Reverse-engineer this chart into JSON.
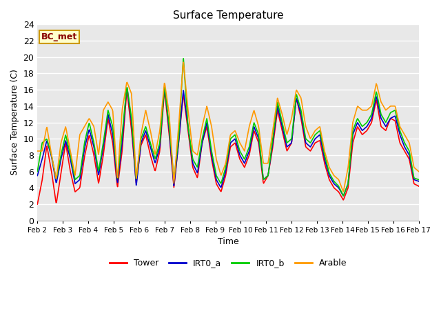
{
  "title": "Surface Temperature",
  "xlabel": "Time",
  "ylabel": "Surface Temperature (C)",
  "ylim": [
    0,
    24
  ],
  "xlim_days": [
    2,
    17
  ],
  "background_color": "#e8e8e8",
  "grid_color": "white",
  "annotation_text": "BC_met",
  "annotation_bg": "#ffffcc",
  "annotation_border": "#cc9900",
  "colors": {
    "Tower": "#ff0000",
    "IRT0_a": "#0000cc",
    "IRT0_b": "#00cc00",
    "Arable": "#ff9900"
  },
  "x_ticks": [
    2,
    3,
    4,
    5,
    6,
    7,
    8,
    9,
    10,
    11,
    12,
    13,
    14,
    15,
    16,
    17
  ],
  "x_tick_labels": [
    "Feb 2",
    "Feb 3",
    "Feb 4",
    "Feb 5",
    "Feb 6",
    "Feb 7",
    "Feb 8",
    "Feb 9",
    "Feb 10",
    "Feb 11",
    "Feb 12",
    "Feb 13",
    "Feb 14",
    "Feb 15",
    "Feb 16",
    "Feb 17"
  ],
  "tower_pts": [
    2.0,
    4.9,
    9.2,
    6.0,
    2.0,
    5.8,
    9.5,
    6.0,
    3.5,
    4.0,
    7.8,
    10.5,
    8.0,
    4.5,
    8.0,
    12.5,
    9.5,
    4.0,
    8.5,
    16.0,
    11.0,
    4.5,
    9.2,
    10.5,
    8.0,
    6.0,
    8.5,
    16.0,
    10.5,
    4.0,
    9.5,
    15.5,
    11.0,
    6.5,
    5.2,
    9.5,
    11.5,
    7.5,
    4.5,
    3.5,
    5.5,
    9.0,
    9.5,
    7.5,
    6.5,
    8.0,
    11.0,
    9.5,
    4.5,
    5.5,
    9.0,
    13.5,
    11.0,
    8.5,
    9.5,
    15.0,
    12.5,
    9.0,
    8.5,
    9.5,
    9.8,
    7.0,
    5.0,
    4.0,
    3.5,
    2.5,
    4.0,
    9.5,
    11.5,
    10.5,
    11.0,
    12.0,
    14.8,
    11.5,
    11.0,
    12.5,
    12.2,
    9.5,
    8.5,
    7.5,
    4.5,
    4.2
  ],
  "irt0_a_pts": [
    5.5,
    7.5,
    9.8,
    7.8,
    4.5,
    7.5,
    9.8,
    7.5,
    4.5,
    5.0,
    8.8,
    11.2,
    9.0,
    5.5,
    9.0,
    13.0,
    10.5,
    4.5,
    9.5,
    16.5,
    12.0,
    4.2,
    9.5,
    11.0,
    9.0,
    7.0,
    9.0,
    16.5,
    11.0,
    4.2,
    9.5,
    16.0,
    11.5,
    7.0,
    5.8,
    9.5,
    12.0,
    8.0,
    5.0,
    4.0,
    6.0,
    9.5,
    10.0,
    8.0,
    7.0,
    8.5,
    11.5,
    10.0,
    5.0,
    5.5,
    9.5,
    14.0,
    11.5,
    9.0,
    9.5,
    15.0,
    13.0,
    9.5,
    9.0,
    10.0,
    10.5,
    7.5,
    5.5,
    4.5,
    4.0,
    3.0,
    4.5,
    10.5,
    12.0,
    11.0,
    11.5,
    12.5,
    15.2,
    12.5,
    11.5,
    12.5,
    12.8,
    10.5,
    9.0,
    8.0,
    5.0,
    4.8
  ],
  "irt0_b_pts": [
    6.0,
    9.5,
    10.0,
    8.0,
    5.0,
    8.0,
    10.5,
    8.0,
    5.0,
    5.5,
    9.5,
    12.0,
    9.5,
    6.0,
    9.5,
    13.5,
    11.5,
    5.0,
    10.5,
    16.5,
    12.5,
    5.0,
    10.0,
    11.5,
    9.5,
    7.5,
    9.5,
    16.5,
    11.5,
    5.0,
    10.0,
    20.0,
    11.5,
    7.5,
    6.5,
    10.0,
    12.5,
    8.5,
    5.5,
    4.5,
    6.5,
    10.0,
    10.5,
    8.5,
    7.5,
    9.0,
    12.0,
    10.5,
    5.0,
    5.5,
    10.0,
    14.5,
    12.0,
    9.5,
    10.0,
    15.5,
    13.5,
    10.0,
    9.5,
    10.5,
    11.0,
    8.0,
    5.8,
    4.8,
    4.2,
    3.0,
    4.5,
    11.0,
    12.5,
    11.5,
    12.0,
    13.0,
    15.8,
    13.0,
    12.0,
    13.2,
    13.5,
    11.0,
    9.5,
    8.5,
    5.2,
    5.0
  ],
  "arable_pts": [
    8.5,
    8.5,
    11.5,
    8.0,
    5.0,
    9.5,
    11.5,
    8.5,
    5.5,
    10.5,
    11.5,
    12.5,
    11.5,
    8.0,
    13.5,
    14.5,
    13.5,
    5.0,
    13.5,
    17.0,
    15.5,
    5.0,
    10.5,
    13.5,
    11.0,
    8.0,
    11.0,
    17.0,
    13.0,
    4.5,
    11.5,
    19.5,
    13.5,
    8.5,
    8.0,
    11.5,
    14.0,
    11.5,
    7.5,
    5.5,
    7.0,
    10.5,
    11.0,
    9.5,
    8.5,
    11.5,
    13.5,
    11.5,
    7.0,
    7.0,
    11.0,
    15.0,
    13.0,
    10.5,
    12.5,
    16.0,
    15.0,
    11.5,
    10.0,
    11.0,
    11.5,
    8.5,
    6.5,
    5.5,
    5.0,
    3.5,
    6.5,
    12.0,
    14.0,
    13.5,
    13.5,
    14.0,
    16.8,
    14.5,
    13.5,
    14.0,
    14.0,
    11.5,
    10.5,
    9.5,
    6.5,
    6.0
  ]
}
